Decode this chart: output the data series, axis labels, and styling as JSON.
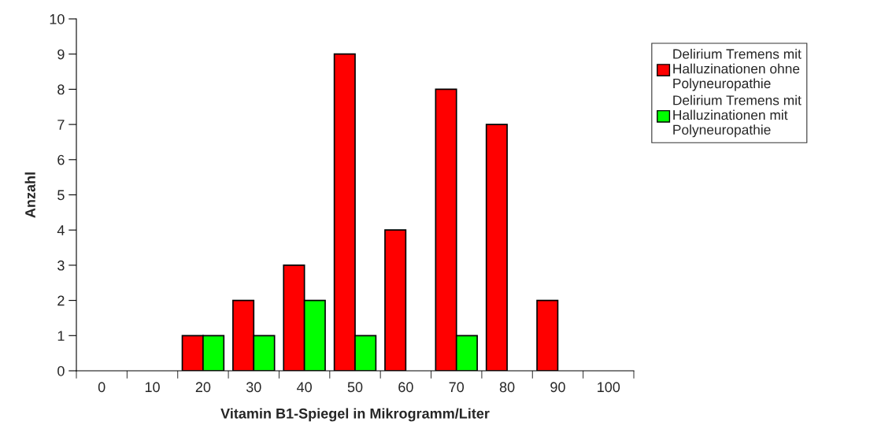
{
  "chart_data": {
    "type": "bar",
    "xlabel": "Vitamin B1-Spiegel in Mikrogramm/Liter",
    "ylabel": "Anzahl",
    "categories": [
      "0",
      "10",
      "20",
      "30",
      "40",
      "50",
      "60",
      "70",
      "80",
      "90",
      "100"
    ],
    "series": [
      {
        "name": "Delirium Tremens mit Halluzinationen ohne Polyneuropathie",
        "color": "#ff0000",
        "values": [
          0,
          0,
          1,
          2,
          3,
          9,
          4,
          8,
          7,
          2,
          0
        ]
      },
      {
        "name": "Delirium Tremens mit Halluzinationen mit Polyneuropathie",
        "color": "#00ff00",
        "values": [
          0,
          0,
          1,
          1,
          2,
          1,
          0,
          1,
          0,
          0,
          0
        ]
      }
    ],
    "ylim": [
      0,
      10
    ],
    "yticks": [
      0,
      1,
      2,
      3,
      4,
      5,
      6,
      7,
      8,
      9,
      10
    ],
    "grid": false,
    "legend": "right"
  }
}
